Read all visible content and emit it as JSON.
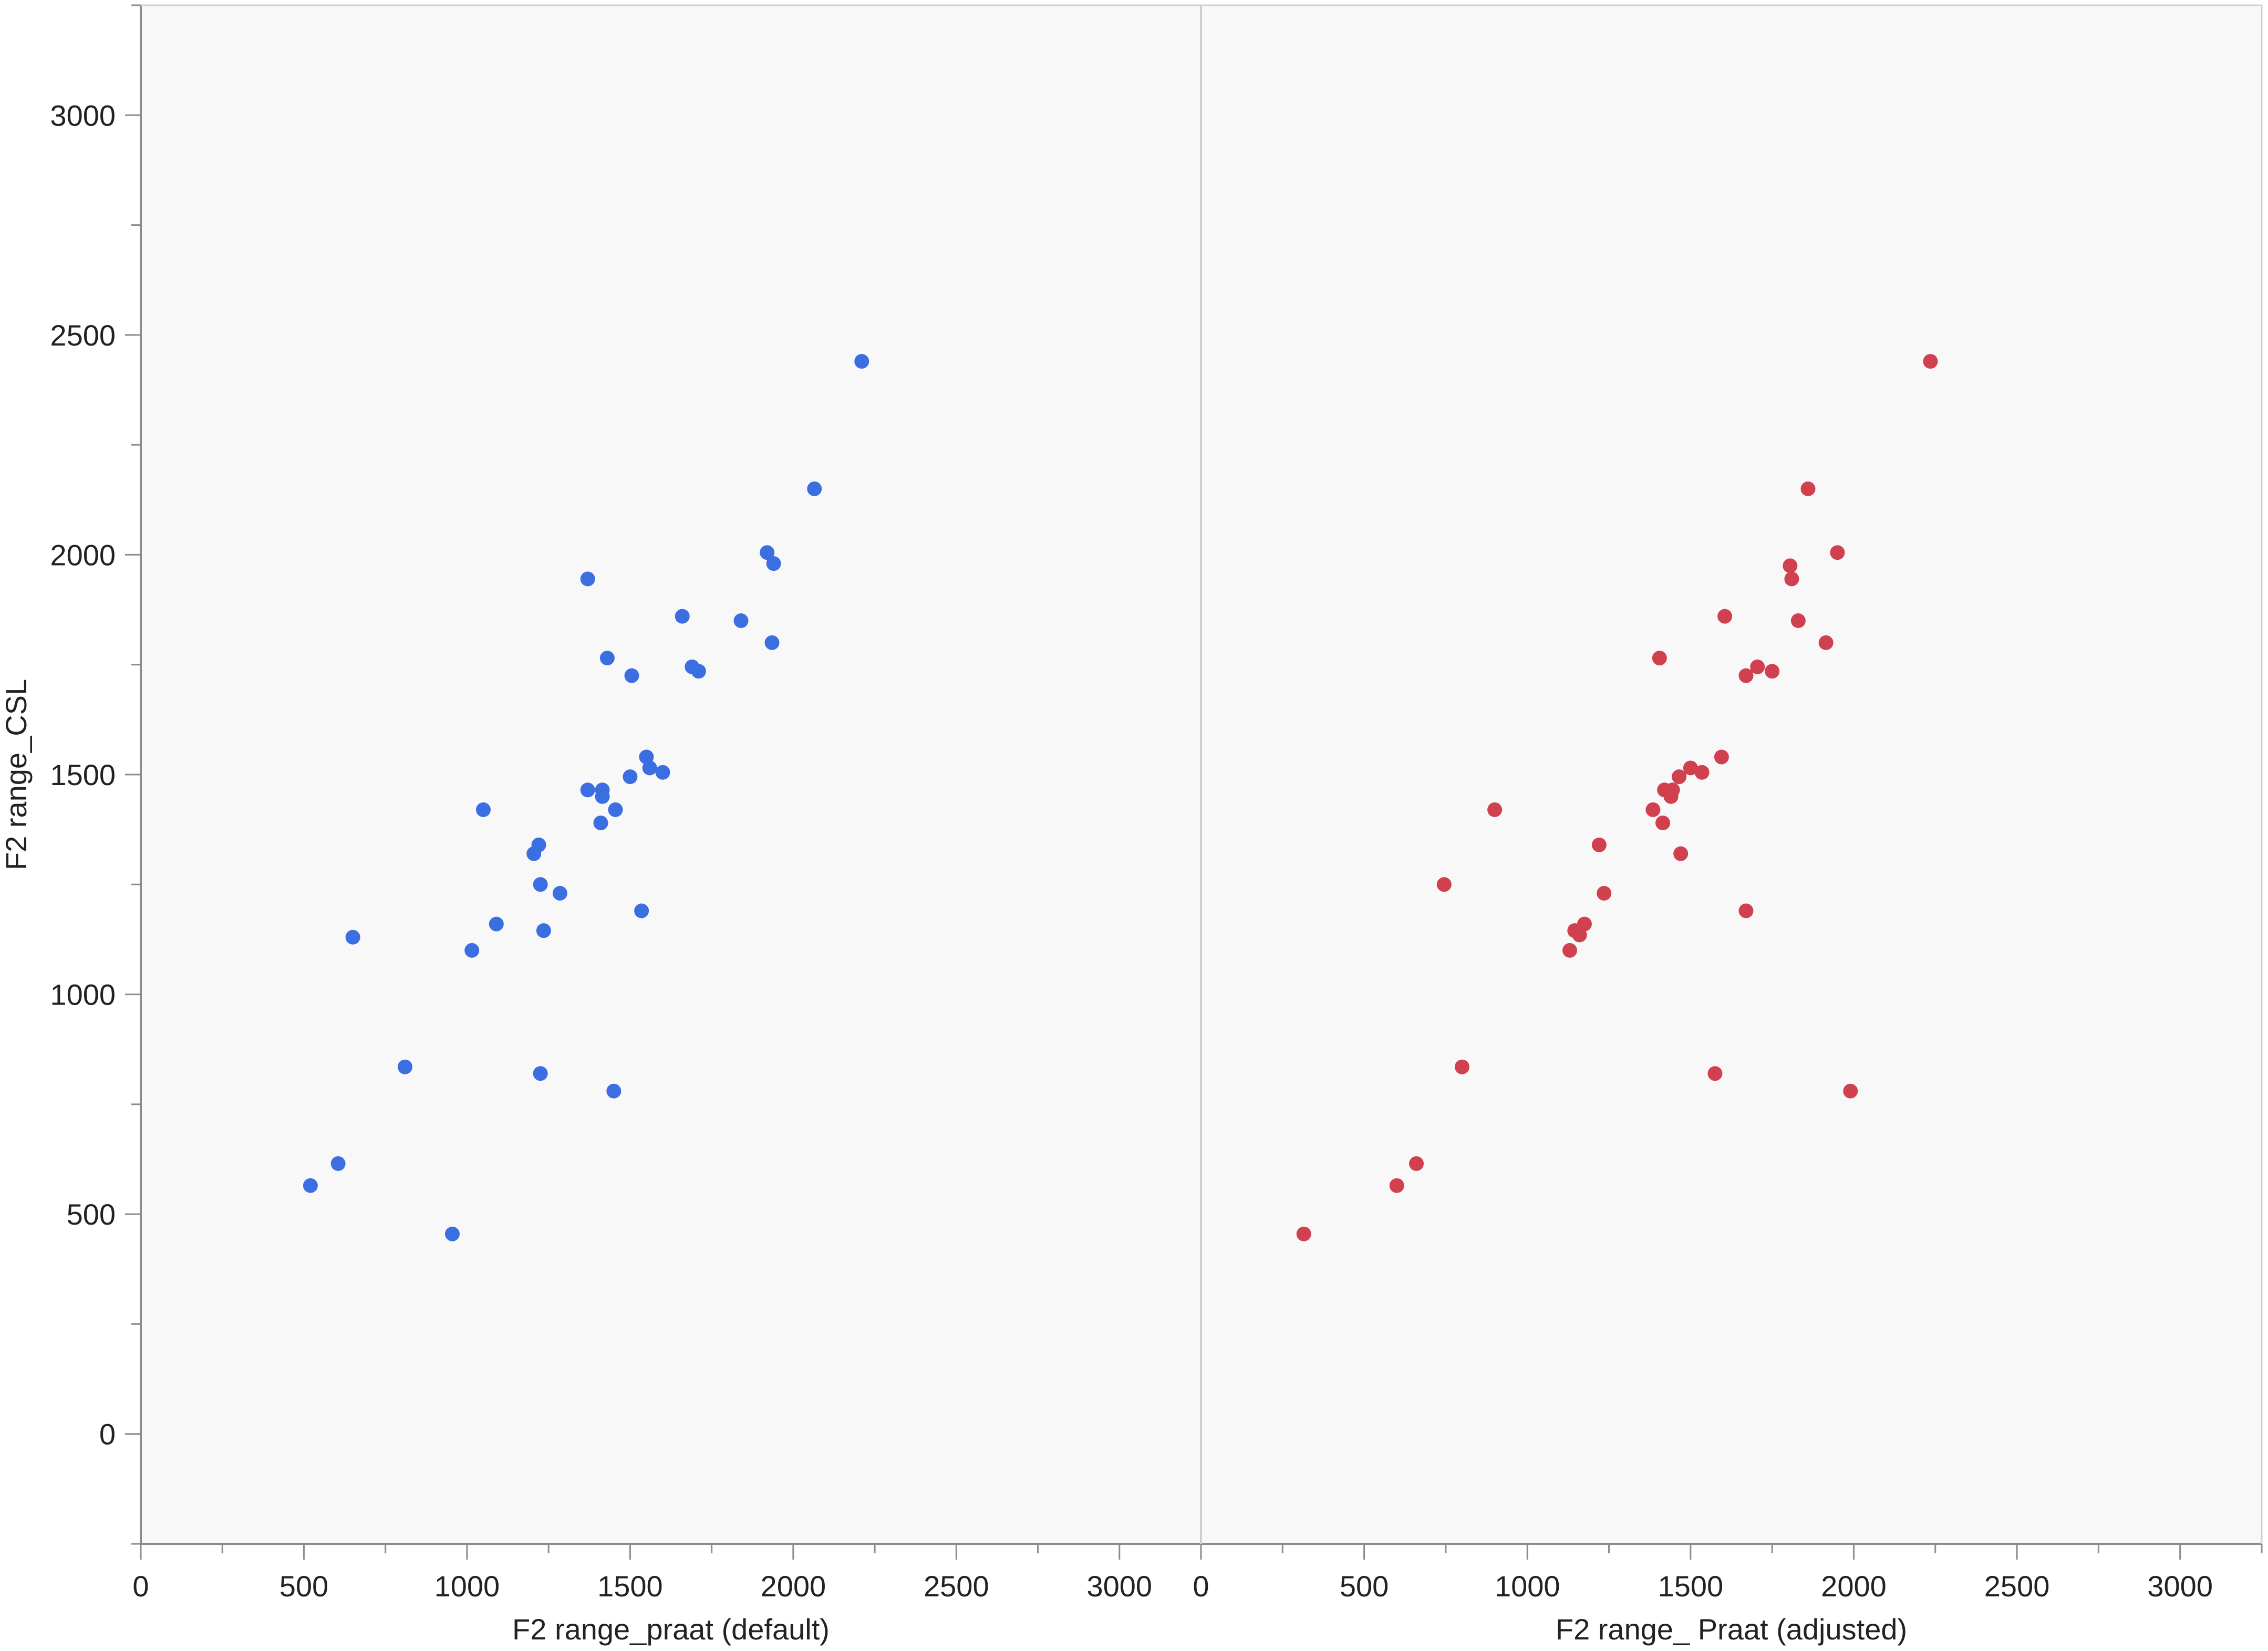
{
  "chart_data": {
    "type": "scatter",
    "ylabel": "F2 range_CSL",
    "ylim": [
      -250,
      3250
    ],
    "yticks": [
      0,
      500,
      1000,
      1500,
      2000,
      2500,
      3000
    ],
    "grid": false,
    "legend": "none",
    "background": "#f8f8f8",
    "panels": [
      {
        "xlabel": "F2 range_praat (default)",
        "xlim": [
          0,
          3250
        ],
        "xticks": [
          0,
          500,
          1000,
          1500,
          2000,
          2500,
          3000
        ],
        "color": "#3b6ee0",
        "points": [
          [
            2210,
            2440
          ],
          [
            2065,
            2150
          ],
          [
            1920,
            2005
          ],
          [
            1940,
            1980
          ],
          [
            1370,
            1945
          ],
          [
            1660,
            1860
          ],
          [
            1840,
            1850
          ],
          [
            1935,
            1800
          ],
          [
            1430,
            1765
          ],
          [
            1690,
            1745
          ],
          [
            1710,
            1735
          ],
          [
            1505,
            1725
          ],
          [
            1550,
            1540
          ],
          [
            1560,
            1515
          ],
          [
            1600,
            1505
          ],
          [
            1500,
            1495
          ],
          [
            1370,
            1465
          ],
          [
            1415,
            1465
          ],
          [
            1415,
            1450
          ],
          [
            1455,
            1420
          ],
          [
            1050,
            1420
          ],
          [
            1410,
            1390
          ],
          [
            1220,
            1340
          ],
          [
            1205,
            1320
          ],
          [
            1225,
            1250
          ],
          [
            1285,
            1230
          ],
          [
            1535,
            1190
          ],
          [
            1090,
            1160
          ],
          [
            1235,
            1145
          ],
          [
            650,
            1130
          ],
          [
            1015,
            1100
          ],
          [
            810,
            835
          ],
          [
            1225,
            820
          ],
          [
            1450,
            780
          ],
          [
            605,
            615
          ],
          [
            520,
            565
          ],
          [
            955,
            455
          ]
        ]
      },
      {
        "xlabel": "F2 range_ Praat (adjusted)",
        "xlim": [
          0,
          3250
        ],
        "xticks": [
          0,
          500,
          1000,
          1500,
          2000,
          2500,
          3000
        ],
        "color": "#d0404e",
        "points": [
          [
            2235,
            2440
          ],
          [
            1860,
            2150
          ],
          [
            1950,
            2005
          ],
          [
            1805,
            1975
          ],
          [
            1810,
            1945
          ],
          [
            1605,
            1860
          ],
          [
            1830,
            1850
          ],
          [
            1915,
            1800
          ],
          [
            1405,
            1765
          ],
          [
            1705,
            1745
          ],
          [
            1750,
            1735
          ],
          [
            1670,
            1725
          ],
          [
            1595,
            1540
          ],
          [
            1500,
            1515
          ],
          [
            1535,
            1505
          ],
          [
            1465,
            1495
          ],
          [
            1420,
            1465
          ],
          [
            1445,
            1465
          ],
          [
            1440,
            1450
          ],
          [
            1385,
            1420
          ],
          [
            900,
            1420
          ],
          [
            1415,
            1390
          ],
          [
            1220,
            1340
          ],
          [
            1470,
            1320
          ],
          [
            745,
            1250
          ],
          [
            1235,
            1230
          ],
          [
            1670,
            1190
          ],
          [
            1175,
            1160
          ],
          [
            1145,
            1145
          ],
          [
            1160,
            1135
          ],
          [
            1130,
            1100
          ],
          [
            800,
            835
          ],
          [
            1575,
            820
          ],
          [
            1990,
            780
          ],
          [
            660,
            615
          ],
          [
            600,
            565
          ],
          [
            315,
            455
          ]
        ]
      }
    ]
  }
}
